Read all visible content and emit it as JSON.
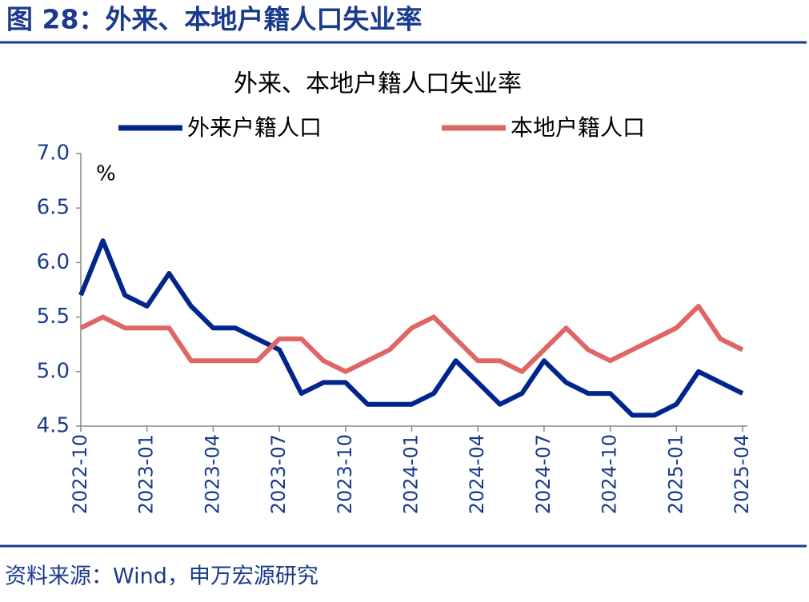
{
  "header": {
    "title": "图 28：外来、本地户籍人口失业率"
  },
  "chart_data": {
    "type": "line",
    "title": "外来、本地户籍人口失业率",
    "annotation": "%",
    "categories": [
      "2022-10",
      null,
      null,
      "2023-01",
      null,
      null,
      "2023-04",
      null,
      null,
      "2023-07",
      null,
      null,
      "2023-10",
      null,
      null,
      "2024-01",
      null,
      null,
      "2024-04",
      null,
      null,
      "2024-07",
      null,
      null,
      "2024-10",
      null,
      null,
      "2025-01",
      null,
      null,
      "2025-04"
    ],
    "series": [
      {
        "name": "外来户籍人口",
        "color": "#00268c",
        "values": [
          5.7,
          6.2,
          5.7,
          5.6,
          5.9,
          5.6,
          5.4,
          5.4,
          5.3,
          5.2,
          4.8,
          4.9,
          4.9,
          4.7,
          4.7,
          4.7,
          4.8,
          5.1,
          4.9,
          4.7,
          4.8,
          5.1,
          4.9,
          4.8,
          4.8,
          4.6,
          4.6,
          4.7,
          5.0,
          4.9,
          4.8
        ]
      },
      {
        "name": "本地户籍人口",
        "color": "#e06666",
        "values": [
          5.4,
          5.5,
          5.4,
          5.4,
          5.4,
          5.1,
          5.1,
          5.1,
          5.1,
          5.3,
          5.3,
          5.1,
          5.0,
          5.1,
          5.2,
          5.4,
          5.5,
          5.3,
          5.1,
          5.1,
          5.0,
          5.2,
          5.4,
          5.2,
          5.1,
          5.2,
          5.3,
          5.4,
          5.6,
          5.3,
          5.2
        ]
      }
    ],
    "ylim": [
      4.5,
      7.0
    ],
    "yticks": [
      4.5,
      {
        "value": 5.0,
        "label": "5.0"
      },
      5.5,
      {
        "value": 6.0,
        "label": "6.0"
      },
      6.5,
      {
        "value": 7.0,
        "label": "7.0"
      }
    ],
    "grid": false,
    "legend": "top"
  },
  "source": "资料来源：Wind，申万宏源研究"
}
